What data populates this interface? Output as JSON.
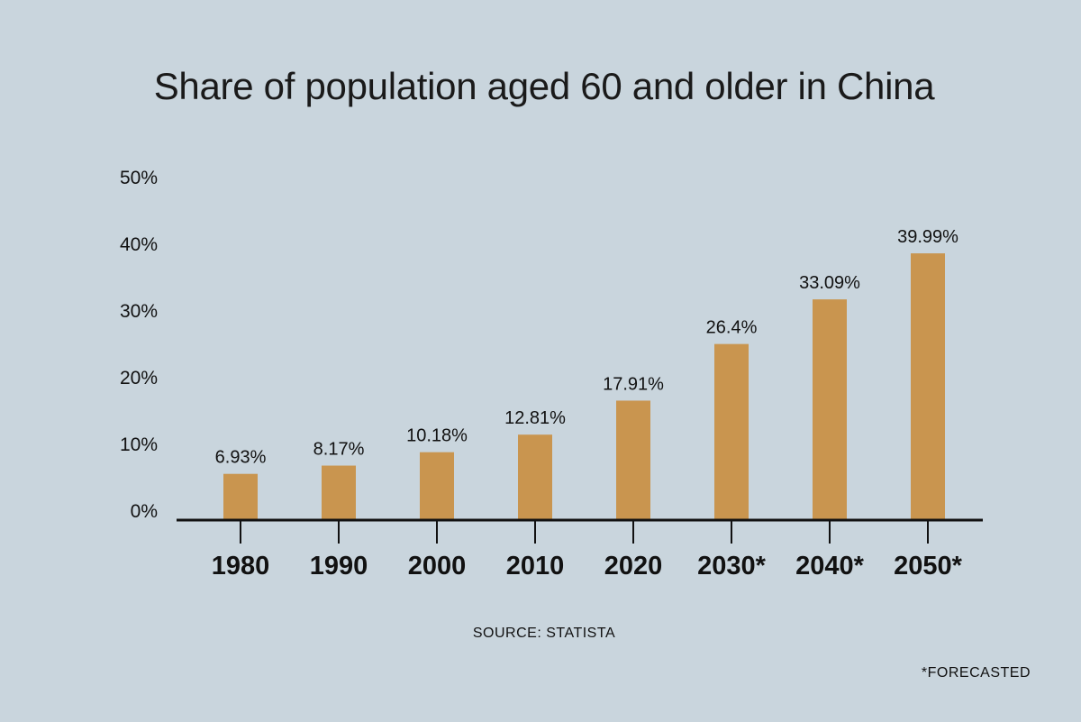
{
  "chart_data": {
    "type": "bar",
    "title": "Share of population aged 60 and older in China",
    "categories": [
      "1980",
      "1990",
      "2000",
      "2010",
      "2020",
      "2030*",
      "2040*",
      "2050*"
    ],
    "values": [
      6.93,
      8.17,
      10.18,
      12.81,
      17.91,
      26.4,
      33.09,
      39.99
    ],
    "value_labels": [
      "6.93%",
      "8.17%",
      "10.18%",
      "12.81%",
      "17.91%",
      "26.4%",
      "33.09%",
      "39.99%"
    ],
    "y_ticks": [
      0,
      10,
      20,
      30,
      40,
      50
    ],
    "y_tick_labels": [
      "0%",
      "10%",
      "20%",
      "30%",
      "40%",
      "50%"
    ],
    "ylim": [
      0,
      50
    ],
    "xlabel": "",
    "ylabel": "",
    "grid": false,
    "bar_color": "#c9954f"
  },
  "source": "SOURCE: STATISTA",
  "footnote": "*FORECASTED",
  "colors": {
    "background": "#c9d5dd",
    "bar": "#c9954f",
    "text": "#111111"
  }
}
